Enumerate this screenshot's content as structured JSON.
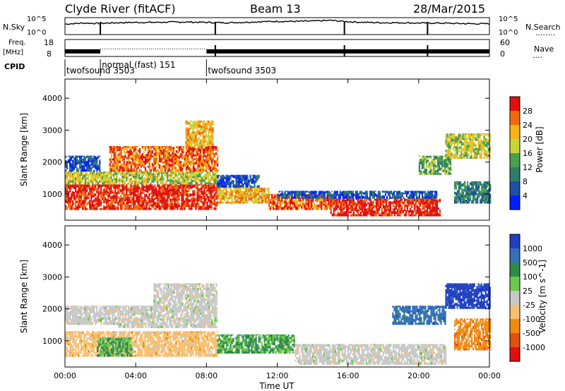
{
  "header": {
    "station": "Clyde River (fitACF)",
    "beam": "Beam 13",
    "date": "28/Mar/2015"
  },
  "chart_data": [
    {
      "type": "line",
      "panel": "nsky-nsearch",
      "left_label": "N.Sky",
      "right_label": "N.Search",
      "left_ticks": [
        "10^5",
        "10^0"
      ],
      "right_ticks": [
        "10^5",
        "10^0"
      ],
      "x_range_hours": [
        0,
        24
      ],
      "noise_level_log": [
        3.1,
        3.4,
        3.3,
        3.5,
        3.6,
        3.6,
        3.7,
        3.7,
        3.6,
        3.5,
        3.6,
        3.8,
        3.9,
        3.9,
        4.0,
        4.2,
        3.8,
        3.6,
        3.5,
        3.5,
        3.4,
        3.4,
        3.3,
        3.2,
        3.2
      ],
      "dropouts_hours": [
        2.0,
        8.5,
        15.8,
        20.5
      ]
    },
    {
      "type": "line",
      "panel": "freq-nave",
      "left_label": "Freq.",
      "left_unit": "[MHz]",
      "right_label": "Nave",
      "left_ticks": [
        "18",
        "8"
      ],
      "right_ticks": [
        "60",
        "0"
      ],
      "freq_mhz_segments": [
        {
          "start": 0,
          "end": 2.0,
          "freq": 11
        },
        {
          "start": 2.0,
          "end": 8.0,
          "freq": 12.5
        },
        {
          "start": 8.0,
          "end": 24,
          "freq": 11
        }
      ],
      "dropouts_hours": [
        8.5,
        15.8,
        20.5
      ]
    },
    {
      "type": "table",
      "panel": "cpid",
      "label": "CPID",
      "modes": [
        {
          "label": "twofsound 3503",
          "start": 0,
          "end": 2.0
        },
        {
          "label": "normal (fast) 151",
          "start": 2.0,
          "end": 8.0
        },
        {
          "label": "twofsound 3503",
          "start": 8.0,
          "end": 24
        }
      ]
    },
    {
      "type": "heatmap",
      "panel": "power",
      "ylabel": "Slant Range [km]",
      "yticks": [
        1000,
        2000,
        3000,
        4000
      ],
      "ylim": [
        180,
        4600
      ],
      "colorbar_label": "Power [dB]",
      "colorbar_ticks": [
        4,
        8,
        12,
        16,
        20,
        24,
        28
      ],
      "colorbar_range": [
        0,
        32
      ],
      "colors": [
        "#0020ff",
        "#1e4fa6",
        "#2e7d6a",
        "#49a04f",
        "#c8d63a",
        "#f7b21a",
        "#f06a10",
        "#e01010"
      ],
      "regions": [
        {
          "t0": 0.0,
          "t1": 8.6,
          "r0": 500,
          "r1": 1300,
          "level": 28
        },
        {
          "t0": 0.0,
          "t1": 8.6,
          "r0": 1300,
          "r1": 1700,
          "level": 18
        },
        {
          "t0": 0.0,
          "t1": 2.0,
          "r0": 1700,
          "r1": 2200,
          "level": 6
        },
        {
          "t0": 2.5,
          "t1": 8.6,
          "r0": 1700,
          "r1": 2500,
          "level": 24
        },
        {
          "t0": 6.8,
          "t1": 8.4,
          "r0": 2500,
          "r1": 3300,
          "level": 22
        },
        {
          "t0": 8.6,
          "t1": 11.5,
          "r0": 700,
          "r1": 1200,
          "level": 20
        },
        {
          "t0": 8.6,
          "t1": 11.0,
          "r0": 1200,
          "r1": 1600,
          "level": 6
        },
        {
          "t0": 11.5,
          "t1": 15.0,
          "r0": 500,
          "r1": 1000,
          "level": 26
        },
        {
          "t0": 15.0,
          "t1": 21.2,
          "r0": 300,
          "r1": 850,
          "level": 28
        },
        {
          "t0": 12.0,
          "t1": 21.0,
          "r0": 850,
          "r1": 1100,
          "level": 5
        },
        {
          "t0": 20.0,
          "t1": 21.8,
          "r0": 1600,
          "r1": 2200,
          "level": 12
        },
        {
          "t0": 21.5,
          "t1": 24,
          "r0": 2100,
          "r1": 2900,
          "level": 16
        },
        {
          "t0": 22.0,
          "t1": 24,
          "r0": 700,
          "r1": 1400,
          "level": 10
        }
      ]
    },
    {
      "type": "heatmap",
      "panel": "velocity",
      "ylabel": "Slant Range [km]",
      "yticks": [
        1000,
        2000,
        3000,
        4000
      ],
      "ylim": [
        180,
        4600
      ],
      "colorbar_label": "Velocity [m s^-1]",
      "colorbar_ticks": [
        "1000",
        "500",
        "100",
        "25",
        "-25",
        "-100",
        "-500",
        "-1000"
      ],
      "colors": [
        "#2040c0",
        "#3570b8",
        "#2e8a4a",
        "#6cc84a",
        "#c8c8c8",
        "#f7c070",
        "#f08a10",
        "#e05010",
        "#e01010"
      ],
      "regions": [
        {
          "t0": 0.0,
          "t1": 8.6,
          "r0": 500,
          "r1": 1300,
          "level": "-100"
        },
        {
          "t0": 0.0,
          "t1": 3.0,
          "r0": 1500,
          "r1": 2100,
          "level": "-25"
        },
        {
          "t0": 3.0,
          "t1": 8.6,
          "r0": 1400,
          "r1": 2100,
          "level": "-25"
        },
        {
          "t0": 1.8,
          "t1": 3.8,
          "r0": 500,
          "r1": 1100,
          "level": "100"
        },
        {
          "t0": 5.0,
          "t1": 8.6,
          "r0": 2100,
          "r1": 2800,
          "level": "25"
        },
        {
          "t0": 8.6,
          "t1": 13.0,
          "r0": 600,
          "r1": 1200,
          "level": "100"
        },
        {
          "t0": 13.0,
          "t1": 21.5,
          "r0": 250,
          "r1": 900,
          "level": "25"
        },
        {
          "t0": 18.5,
          "t1": 21.5,
          "r0": 1500,
          "r1": 2100,
          "level": "500"
        },
        {
          "t0": 21.5,
          "t1": 24,
          "r0": 2000,
          "r1": 2800,
          "level": "1000"
        },
        {
          "t0": 22.0,
          "t1": 24,
          "r0": 700,
          "r1": 1700,
          "level": "-500"
        }
      ]
    }
  ],
  "x_axis": {
    "label": "Time UT",
    "ticks": [
      "00:00",
      "04:00",
      "08:00",
      "12:00",
      "16:00",
      "20:00",
      "00:00"
    ],
    "tick_hours": [
      0,
      4,
      8,
      12,
      16,
      20,
      24
    ]
  },
  "legend_marks": {
    "n_search_dots": "........",
    "nave_dots": "...."
  }
}
